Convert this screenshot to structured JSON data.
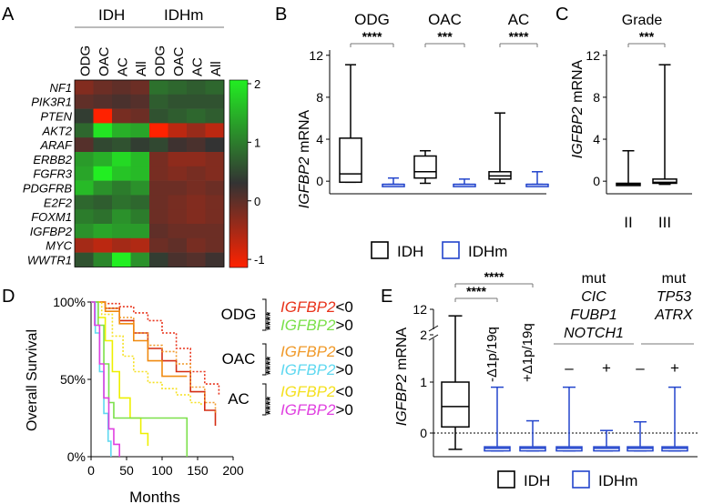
{
  "figure": {
    "panel_letters": [
      "A",
      "B",
      "C",
      "D",
      "E"
    ],
    "colors": {
      "red": "#ff2200",
      "green": "#22ee22",
      "dark": "#333333",
      "idh": "#000000",
      "idhm": "#2244cc"
    }
  },
  "panelA": {
    "group_labels": [
      "IDH",
      "IDHm"
    ],
    "col_labels": [
      "ODG",
      "OAC",
      "AC",
      "All",
      "ODG",
      "OAC",
      "AC",
      "All"
    ],
    "row_labels": [
      "NF1",
      "PIK3R1",
      "PTEN",
      "AKT2",
      "ARAF",
      "ERBB2",
      "FGFR3",
      "PDGFRB",
      "E2F2",
      "FOXM1",
      "IGFBP2",
      "MYC",
      "WWTR1"
    ],
    "matrix": [
      [
        -0.7,
        -0.5,
        -0.4,
        -0.5,
        0.6,
        0.5,
        0.4,
        0.5
      ],
      [
        -0.4,
        -0.3,
        -0.2,
        -0.3,
        0.4,
        0.3,
        0.3,
        0.3
      ],
      [
        0.1,
        -1.8,
        -0.6,
        -0.5,
        0.3,
        0.4,
        0.5,
        0.4
      ],
      [
        0.5,
        1.7,
        1.2,
        1.1,
        -1.8,
        -1.2,
        -0.9,
        -1.2
      ],
      [
        -0.3,
        0.2,
        0.3,
        0.1,
        0.2,
        -0.1,
        -0.2,
        0.0
      ],
      [
        1.0,
        1.2,
        1.6,
        1.3,
        -0.6,
        -0.8,
        -0.8,
        -0.7
      ],
      [
        1.1,
        1.8,
        1.4,
        1.3,
        -0.6,
        -0.7,
        -0.6,
        -0.7
      ],
      [
        1.3,
        0.9,
        0.7,
        0.9,
        -0.5,
        -0.5,
        -0.6,
        -0.5
      ],
      [
        0.5,
        0.4,
        0.6,
        0.5,
        -0.5,
        -0.6,
        -0.7,
        -0.6
      ],
      [
        0.7,
        0.6,
        0.9,
        0.7,
        -0.5,
        -0.6,
        -0.7,
        -0.6
      ],
      [
        0.9,
        1.1,
        1.0,
        1.0,
        -0.4,
        -0.5,
        -0.5,
        -0.5
      ],
      [
        -1.0,
        -1.2,
        -1.0,
        -1.1,
        -0.5,
        -0.4,
        -0.6,
        -0.5
      ],
      [
        0.3,
        0.8,
        1.8,
        0.9,
        0.1,
        -0.2,
        -0.3,
        -0.1
      ]
    ],
    "colorbar_ticks": [
      "2",
      "1",
      "0",
      "-1"
    ],
    "colorbar_values": [
      2,
      1,
      0,
      -1
    ]
  },
  "panelB": {
    "ylabel_gene": "IGFBP2",
    "ylabel_suffix": " mRNA",
    "yticks": [
      "0",
      "4",
      "8",
      "12"
    ],
    "ytick_values": [
      0,
      4,
      8,
      12
    ],
    "ylim": [
      -1.2,
      12.5
    ],
    "groups": [
      {
        "label": "ODG",
        "sig": "****",
        "idh": {
          "min": -0.1,
          "q1": -0.1,
          "med": 0.7,
          "q3": 4.1,
          "max": 11.1
        },
        "idhm": {
          "min": -0.3,
          "q1": -0.3,
          "med": -0.3,
          "q3": -0.3,
          "max": 0.3
        }
      },
      {
        "label": "OAC",
        "sig": "***",
        "idh": {
          "min": -0.2,
          "q1": 0.3,
          "med": 0.9,
          "q3": 2.4,
          "max": 2.9
        },
        "idhm": {
          "min": -0.3,
          "q1": -0.3,
          "med": -0.3,
          "q3": -0.3,
          "max": 0.2
        }
      },
      {
        "label": "AC",
        "sig": "****",
        "idh": {
          "min": -0.2,
          "q1": 0.2,
          "med": 0.5,
          "q3": 0.9,
          "max": 6.5
        },
        "idhm": {
          "min": -0.3,
          "q1": -0.3,
          "med": -0.3,
          "q3": -0.3,
          "max": 0.9
        }
      }
    ]
  },
  "panelC": {
    "title": "Grade",
    "sig": "***",
    "ylabel_gene": "IGFBP2",
    "ylabel_suffix": " mRNA",
    "yticks": [
      "0",
      "4",
      "8",
      "12"
    ],
    "ytick_values": [
      0,
      4,
      8,
      12
    ],
    "ylim": [
      -1.2,
      12.5
    ],
    "categories": [
      "II",
      "III"
    ],
    "boxes": [
      {
        "min": -0.3,
        "q1": -0.3,
        "med": -0.3,
        "q3": -0.2,
        "max": 2.9
      },
      {
        "min": -0.3,
        "q1": -0.2,
        "med": -0.1,
        "q3": 0.2,
        "max": 11.1
      }
    ]
  },
  "legendBC": {
    "idh": "IDH",
    "idhm": "IDHm"
  },
  "panelD": {
    "ylabel": "Overall Survival",
    "xlabel": "Months",
    "yticks": [
      "0%",
      "50%",
      "100%"
    ],
    "ytick_values": [
      0,
      50,
      100
    ],
    "xticks": [
      "0",
      "50",
      "100",
      "150",
      "200"
    ],
    "xtick_values": [
      0,
      50,
      100,
      150,
      200
    ],
    "xlim": [
      0,
      200
    ],
    "ylim": [
      0,
      100
    ],
    "groups": [
      {
        "label": "ODG",
        "sig": "****",
        "lines": [
          {
            "gene": "IGFBP2",
            "rel": "<0",
            "color": "#e8341c",
            "dotted": true
          },
          {
            "gene": "IGFBP2",
            "rel": ">0",
            "color": "#7be04a",
            "dotted": false
          }
        ]
      },
      {
        "label": "OAC",
        "sig": "****",
        "lines": [
          {
            "gene": "IGFBP2",
            "rel": "<0",
            "color": "#f09a2a",
            "dotted": true
          },
          {
            "gene": "IGFBP2",
            "rel": ">0",
            "color": "#5fd8f0",
            "dotted": false
          }
        ]
      },
      {
        "label": "AC",
        "sig": "****",
        "lines": [
          {
            "gene": "IGFBP2",
            "rel": "<0",
            "color": "#f5e020",
            "dotted": true
          },
          {
            "gene": "IGFBP2",
            "rel": ">0",
            "color": "#e040e0",
            "dotted": false
          }
        ]
      }
    ],
    "curves": [
      {
        "name": "ODG low",
        "color": "#e8341c",
        "dotted": true,
        "pts": [
          [
            0,
            100
          ],
          [
            20,
            99
          ],
          [
            40,
            97
          ],
          [
            60,
            93
          ],
          [
            80,
            88
          ],
          [
            100,
            80
          ],
          [
            120,
            70
          ],
          [
            140,
            55
          ],
          [
            160,
            47
          ],
          [
            180,
            40
          ]
        ]
      },
      {
        "name": "ODG high",
        "color": "#d42c12",
        "dotted": false,
        "pts": [
          [
            0,
            100
          ],
          [
            20,
            96
          ],
          [
            40,
            88
          ],
          [
            60,
            80
          ],
          [
            80,
            70
          ],
          [
            100,
            62
          ],
          [
            120,
            55
          ],
          [
            140,
            42
          ],
          [
            160,
            30
          ],
          [
            175,
            20
          ]
        ]
      },
      {
        "name": "OAC low",
        "color": "#f09a2a",
        "dotted": true,
        "pts": [
          [
            0,
            100
          ],
          [
            20,
            96
          ],
          [
            40,
            90
          ],
          [
            60,
            80
          ],
          [
            80,
            72
          ],
          [
            100,
            68
          ],
          [
            120,
            60
          ],
          [
            140,
            45
          ],
          [
            160,
            35
          ],
          [
            175,
            28
          ]
        ]
      },
      {
        "name": "OAC high",
        "color": "#f08a10",
        "dotted": false,
        "pts": [
          [
            0,
            100
          ],
          [
            20,
            94
          ],
          [
            40,
            86
          ],
          [
            60,
            75
          ],
          [
            80,
            62
          ],
          [
            100,
            52
          ],
          [
            120,
            52
          ],
          [
            130,
            52
          ],
          [
            135,
            52
          ]
        ]
      },
      {
        "name": "AC low",
        "color": "#f5e020",
        "dotted": true,
        "pts": [
          [
            0,
            100
          ],
          [
            15,
            92
          ],
          [
            30,
            78
          ],
          [
            45,
            65
          ],
          [
            60,
            55
          ],
          [
            80,
            48
          ],
          [
            100,
            44
          ],
          [
            120,
            40
          ],
          [
            140,
            35
          ],
          [
            155,
            33
          ]
        ]
      },
      {
        "name": "AC high",
        "color": "#eef000",
        "dotted": false,
        "pts": [
          [
            0,
            100
          ],
          [
            10,
            90
          ],
          [
            20,
            75
          ],
          [
            30,
            55
          ],
          [
            40,
            38
          ],
          [
            55,
            25
          ],
          [
            70,
            15
          ],
          [
            80,
            7
          ]
        ]
      },
      {
        "name": "green mid",
        "color": "#7be04a",
        "dotted": false,
        "pts": [
          [
            0,
            100
          ],
          [
            10,
            85
          ],
          [
            18,
            60
          ],
          [
            25,
            35
          ],
          [
            32,
            25
          ],
          [
            40,
            25
          ],
          [
            100,
            25
          ],
          [
            135,
            25
          ],
          [
            135,
            0
          ]
        ]
      },
      {
        "name": "cyan",
        "color": "#5fd8f0",
        "dotted": false,
        "pts": [
          [
            0,
            100
          ],
          [
            6,
            80
          ],
          [
            12,
            55
          ],
          [
            18,
            28
          ],
          [
            24,
            10
          ],
          [
            28,
            0
          ]
        ]
      },
      {
        "name": "magenta",
        "color": "#e040e0",
        "dotted": false,
        "pts": [
          [
            0,
            100
          ],
          [
            5,
            85
          ],
          [
            12,
            60
          ],
          [
            18,
            38
          ],
          [
            25,
            18
          ],
          [
            32,
            8
          ],
          [
            40,
            0
          ]
        ]
      }
    ]
  },
  "panelE": {
    "ylabel_gene": "IGFBP2",
    "ylabel_suffix": " mRNA",
    "yticks": [
      "0",
      "1",
      "2",
      "12"
    ],
    "sig_labels": [
      "****",
      "****"
    ],
    "del_labels": [
      "-Δ1p/19q",
      "+Δ1p/19q"
    ],
    "mut_label": "mut",
    "mut_groups": [
      {
        "genes": [
          "CIC",
          "FUBP1",
          "NOTCH1"
        ],
        "signs": [
          "–",
          "+"
        ]
      },
      {
        "genes": [
          "TP53",
          "ATRX"
        ],
        "signs": [
          "–",
          "+"
        ]
      }
    ],
    "boxes": [
      {
        "color": "idh",
        "min": -0.32,
        "q1": 0.12,
        "med": 0.52,
        "q3": 1.0,
        "max": 2.4
      },
      {
        "color": "idhm",
        "min": -0.35,
        "q1": -0.35,
        "med": -0.3,
        "q3": -0.27,
        "max": 0.9
      },
      {
        "color": "idhm",
        "min": -0.35,
        "q1": -0.35,
        "med": -0.3,
        "q3": -0.27,
        "max": 0.24
      },
      {
        "color": "idhm",
        "min": -0.35,
        "q1": -0.35,
        "med": -0.3,
        "q3": -0.27,
        "max": 0.9
      },
      {
        "color": "idhm",
        "min": -0.35,
        "q1": -0.35,
        "med": -0.3,
        "q3": -0.27,
        "max": 0.05
      },
      {
        "color": "idhm",
        "min": -0.35,
        "q1": -0.35,
        "med": -0.3,
        "q3": -0.27,
        "max": 0.22
      },
      {
        "color": "idhm",
        "min": -0.35,
        "q1": -0.35,
        "med": -0.3,
        "q3": -0.27,
        "max": 0.9
      }
    ]
  },
  "legendE": {
    "idh": "IDH",
    "idhm": "IDHm"
  }
}
